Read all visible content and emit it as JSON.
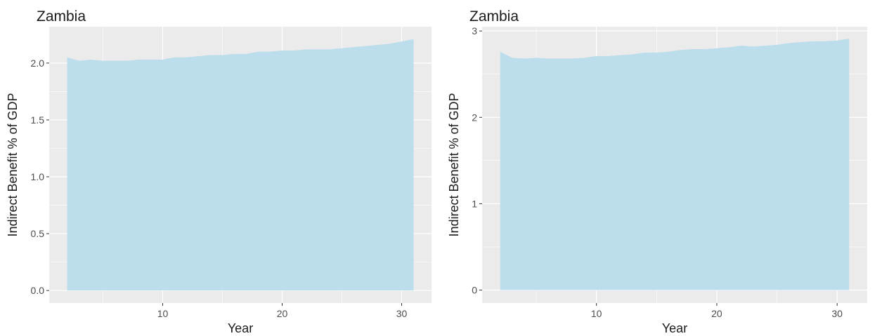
{
  "colors": {
    "panel_bg": "#ebebeb",
    "grid_major": "#ffffff",
    "area_fill": "#b8dcec",
    "text": "#1a1a1a",
    "tick_text": "#4d4d4d"
  },
  "chart_data": [
    {
      "type": "area",
      "title": "Zambia",
      "xlabel": "Year",
      "ylabel": "Indirect Benefit % of GDP",
      "xlim": [
        0.5,
        32.5
      ],
      "ylim": [
        -0.11,
        2.32
      ],
      "xticks": [
        10,
        20,
        30
      ],
      "xtick_labels": [
        "10",
        "20",
        "30"
      ],
      "yticks": [
        0,
        0.5,
        1.0,
        1.5,
        2.0
      ],
      "ytick_labels": [
        "0.0",
        "0.5",
        "1.0",
        "1.5",
        "2.0"
      ],
      "grid": true,
      "legend": "none",
      "x": [
        2,
        3,
        4,
        5,
        6,
        7,
        8,
        9,
        10,
        11,
        12,
        13,
        14,
        15,
        16,
        17,
        18,
        19,
        20,
        21,
        22,
        23,
        24,
        25,
        26,
        27,
        28,
        29,
        30,
        31
      ],
      "values": [
        2.05,
        2.02,
        2.03,
        2.02,
        2.02,
        2.02,
        2.03,
        2.03,
        2.03,
        2.05,
        2.05,
        2.06,
        2.07,
        2.07,
        2.08,
        2.08,
        2.1,
        2.1,
        2.11,
        2.11,
        2.12,
        2.12,
        2.12,
        2.13,
        2.14,
        2.15,
        2.16,
        2.17,
        2.19,
        2.21
      ]
    },
    {
      "type": "area",
      "title": "Zambia",
      "xlabel": "Year",
      "ylabel": "Indirect Benefit % of GDP",
      "xlim": [
        0.5,
        32.5
      ],
      "ylim": [
        -0.15,
        3.05
      ],
      "xticks": [
        10,
        20,
        30
      ],
      "xtick_labels": [
        "10",
        "20",
        "30"
      ],
      "yticks": [
        0,
        1,
        2,
        3
      ],
      "ytick_labels": [
        "0",
        "1",
        "2",
        "3"
      ],
      "grid": true,
      "legend": "none",
      "x": [
        2,
        3,
        4,
        5,
        6,
        7,
        8,
        9,
        10,
        11,
        12,
        13,
        14,
        15,
        16,
        17,
        18,
        19,
        20,
        21,
        22,
        23,
        24,
        25,
        26,
        27,
        28,
        29,
        30,
        31
      ],
      "values": [
        2.76,
        2.69,
        2.68,
        2.69,
        2.68,
        2.68,
        2.68,
        2.69,
        2.71,
        2.71,
        2.72,
        2.73,
        2.75,
        2.75,
        2.76,
        2.78,
        2.79,
        2.79,
        2.8,
        2.81,
        2.83,
        2.82,
        2.83,
        2.84,
        2.86,
        2.87,
        2.88,
        2.88,
        2.89,
        2.91
      ]
    }
  ]
}
